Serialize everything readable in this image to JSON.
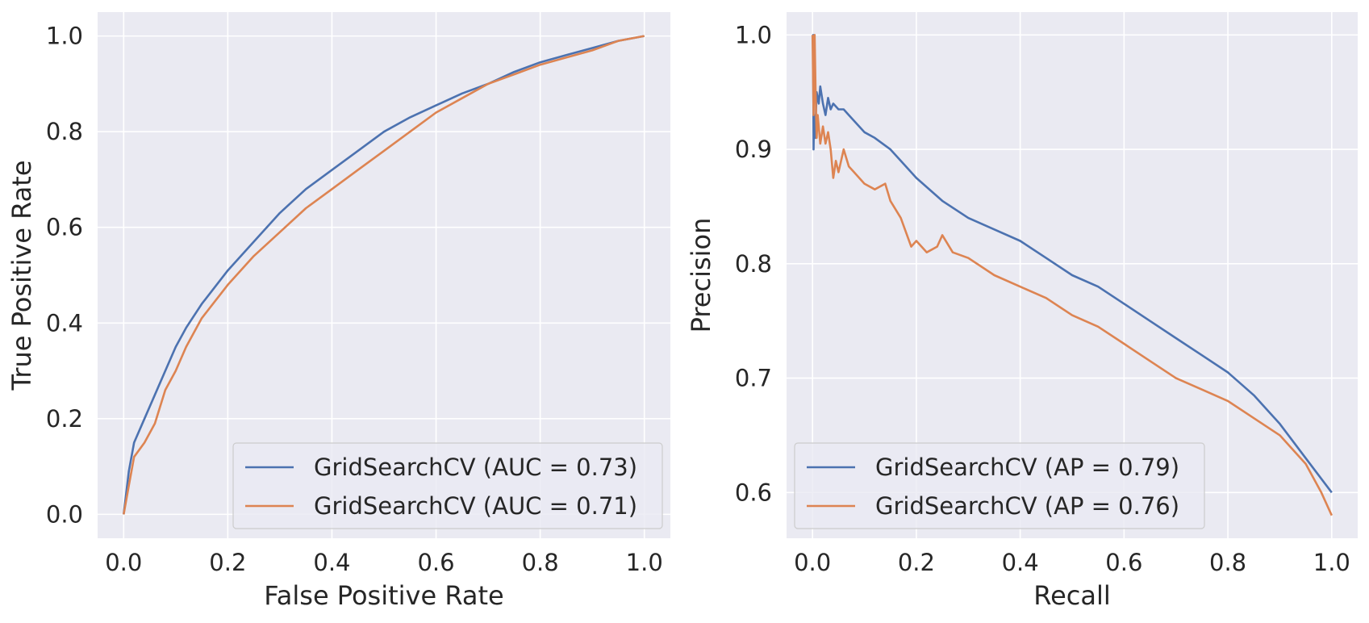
{
  "chart_data": [
    {
      "type": "line",
      "xlabel": "False Positive Rate",
      "ylabel": "True Positive Rate",
      "xlim": [
        -0.05,
        1.05
      ],
      "ylim": [
        -0.05,
        1.05
      ],
      "xticks": [
        "0.0",
        "0.2",
        "0.4",
        "0.6",
        "0.8",
        "1.0"
      ],
      "yticks": [
        "0.0",
        "0.2",
        "0.4",
        "0.6",
        "0.8",
        "1.0"
      ],
      "grid": true,
      "legend_position": "lower-right",
      "series": [
        {
          "name": "GridSearchCV (AUC = 0.73)",
          "color": "#4c72b0",
          "x": [
            0.0,
            0.01,
            0.02,
            0.04,
            0.06,
            0.08,
            0.1,
            0.12,
            0.15,
            0.2,
            0.25,
            0.3,
            0.35,
            0.4,
            0.45,
            0.5,
            0.55,
            0.6,
            0.65,
            0.7,
            0.75,
            0.8,
            0.85,
            0.9,
            0.95,
            1.0
          ],
          "y": [
            0.0,
            0.09,
            0.15,
            0.2,
            0.25,
            0.3,
            0.35,
            0.39,
            0.44,
            0.51,
            0.57,
            0.63,
            0.68,
            0.72,
            0.76,
            0.8,
            0.83,
            0.855,
            0.88,
            0.9,
            0.925,
            0.945,
            0.96,
            0.975,
            0.99,
            1.0
          ]
        },
        {
          "name": "GridSearchCV (AUC = 0.71)",
          "color": "#dd8452",
          "x": [
            0.0,
            0.01,
            0.02,
            0.04,
            0.06,
            0.08,
            0.1,
            0.12,
            0.15,
            0.2,
            0.25,
            0.3,
            0.35,
            0.4,
            0.45,
            0.5,
            0.55,
            0.6,
            0.65,
            0.7,
            0.75,
            0.8,
            0.85,
            0.9,
            0.95,
            1.0
          ],
          "y": [
            0.0,
            0.06,
            0.12,
            0.15,
            0.19,
            0.26,
            0.3,
            0.35,
            0.41,
            0.48,
            0.54,
            0.59,
            0.64,
            0.68,
            0.72,
            0.76,
            0.8,
            0.84,
            0.87,
            0.9,
            0.92,
            0.94,
            0.955,
            0.97,
            0.99,
            1.0
          ]
        }
      ]
    },
    {
      "type": "line",
      "xlabel": "Recall",
      "ylabel": "Precision",
      "xlim": [
        -0.05,
        1.05
      ],
      "ylim": [
        0.56,
        1.02
      ],
      "xticks": [
        "0.0",
        "0.2",
        "0.4",
        "0.6",
        "0.8",
        "1.0"
      ],
      "yticks": [
        "0.6",
        "0.7",
        "0.8",
        "0.9",
        "1.0"
      ],
      "grid": true,
      "legend_position": "lower-left",
      "series": [
        {
          "name": "GridSearchCV (AP = 0.79)",
          "color": "#4c72b0",
          "x": [
            0.0,
            0.001,
            0.002,
            0.003,
            0.005,
            0.008,
            0.012,
            0.015,
            0.02,
            0.025,
            0.03,
            0.035,
            0.04,
            0.05,
            0.06,
            0.07,
            0.08,
            0.1,
            0.12,
            0.15,
            0.17,
            0.2,
            0.25,
            0.3,
            0.35,
            0.4,
            0.45,
            0.5,
            0.55,
            0.6,
            0.65,
            0.7,
            0.75,
            0.8,
            0.85,
            0.9,
            0.95,
            1.0
          ],
          "y": [
            1.0,
            1.0,
            0.9,
            0.93,
            0.91,
            0.95,
            0.94,
            0.955,
            0.94,
            0.93,
            0.945,
            0.935,
            0.94,
            0.935,
            0.935,
            0.93,
            0.925,
            0.915,
            0.91,
            0.9,
            0.89,
            0.875,
            0.855,
            0.84,
            0.83,
            0.82,
            0.805,
            0.79,
            0.78,
            0.765,
            0.75,
            0.735,
            0.72,
            0.705,
            0.685,
            0.66,
            0.63,
            0.6
          ]
        },
        {
          "name": "GridSearchCV (AP = 0.76)",
          "color": "#dd8452",
          "x": [
            0.0,
            0.002,
            0.004,
            0.006,
            0.008,
            0.01,
            0.012,
            0.015,
            0.02,
            0.025,
            0.03,
            0.035,
            0.04,
            0.045,
            0.05,
            0.06,
            0.07,
            0.08,
            0.1,
            0.12,
            0.14,
            0.15,
            0.17,
            0.19,
            0.2,
            0.22,
            0.24,
            0.25,
            0.27,
            0.3,
            0.35,
            0.4,
            0.45,
            0.5,
            0.55,
            0.6,
            0.65,
            0.7,
            0.75,
            0.8,
            0.85,
            0.9,
            0.95,
            0.98,
            1.0
          ],
          "y": [
            1.0,
            0.93,
            1.0,
            0.95,
            0.91,
            0.93,
            0.92,
            0.905,
            0.92,
            0.905,
            0.915,
            0.9,
            0.875,
            0.89,
            0.88,
            0.9,
            0.885,
            0.88,
            0.87,
            0.865,
            0.87,
            0.855,
            0.84,
            0.815,
            0.82,
            0.81,
            0.815,
            0.825,
            0.81,
            0.805,
            0.79,
            0.78,
            0.77,
            0.755,
            0.745,
            0.73,
            0.715,
            0.7,
            0.69,
            0.68,
            0.665,
            0.65,
            0.625,
            0.6,
            0.58
          ]
        }
      ]
    }
  ]
}
